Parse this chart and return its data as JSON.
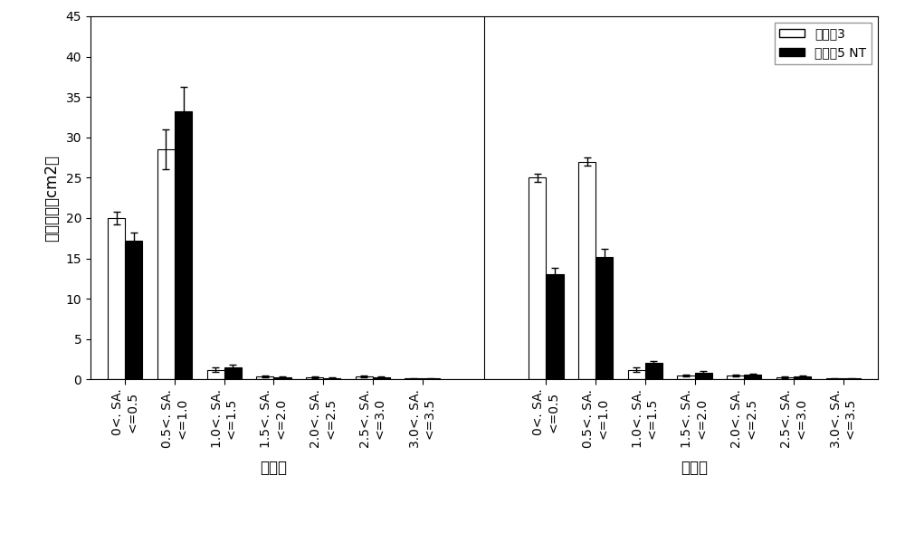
{
  "categories": [
    "0<. SA.\n<=0.5",
    "0.5<. SA.\n<=1.0",
    "1.0<. SA.\n<=1.5",
    "1.5<. SA.\n<=2.0",
    "2.0<. SA.\n<=2.5",
    "2.5<. SA.\n<=3.0",
    "3.0<. SA.\n<=3.5"
  ],
  "ctrl_white": [
    20.0,
    28.5,
    1.2,
    0.4,
    0.3,
    0.4,
    0.1
  ],
  "ctrl_black": [
    17.2,
    33.2,
    1.5,
    0.3,
    0.2,
    0.3,
    0.1
  ],
  "treat_white": [
    25.0,
    27.0,
    1.2,
    0.5,
    0.5,
    0.3,
    0.1
  ],
  "treat_black": [
    13.0,
    15.2,
    2.0,
    0.8,
    0.6,
    0.4,
    0.1
  ],
  "ctrl_white_err": [
    0.8,
    2.5,
    0.3,
    0.1,
    0.1,
    0.1,
    0.05
  ],
  "ctrl_black_err": [
    1.0,
    3.0,
    0.3,
    0.1,
    0.05,
    0.1,
    0.05
  ],
  "treat_white_err": [
    0.5,
    0.5,
    0.3,
    0.15,
    0.1,
    0.1,
    0.05
  ],
  "treat_black_err": [
    0.8,
    1.0,
    0.3,
    0.2,
    0.1,
    0.1,
    0.05
  ],
  "ylabel": "根表面积（cm2）",
  "group_ctrl_label": "对照组",
  "group_treat_label": "处理组",
  "legend_white": "转基因3",
  "legend_black": "转基因5 NT",
  "ylim": [
    0,
    45
  ],
  "yticks": [
    0,
    5,
    10,
    15,
    20,
    25,
    30,
    35,
    40,
    45
  ],
  "bar_width": 0.35,
  "white_color": "#ffffff",
  "black_color": "#000000",
  "edge_color": "#000000",
  "background_color": "#ffffff"
}
